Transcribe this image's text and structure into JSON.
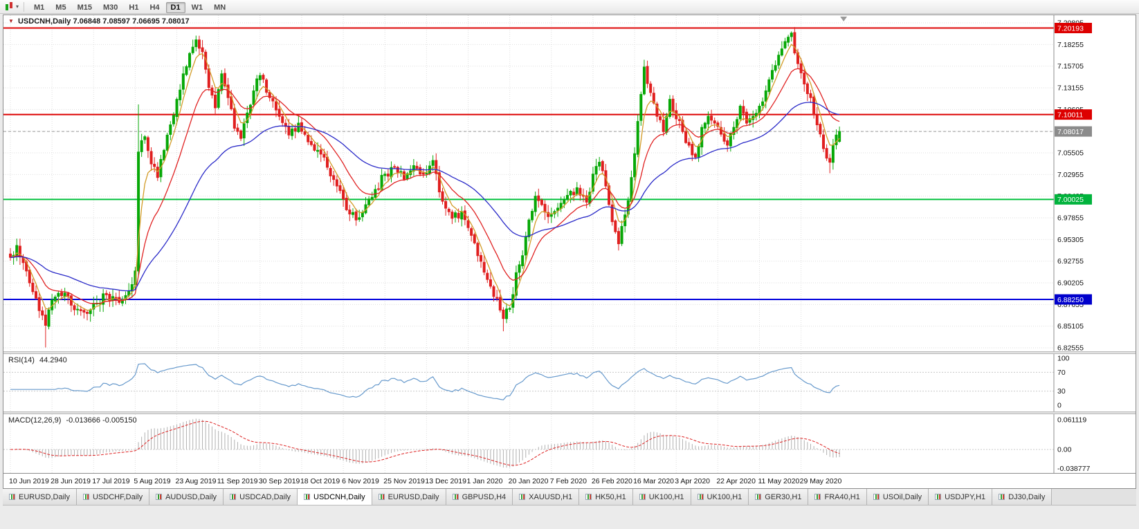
{
  "toolbar": {
    "timeframes": [
      {
        "label": "M1",
        "active": false
      },
      {
        "label": "M5",
        "active": false
      },
      {
        "label": "M15",
        "active": false
      },
      {
        "label": "M30",
        "active": false
      },
      {
        "label": "H1",
        "active": false
      },
      {
        "label": "H4",
        "active": false
      },
      {
        "label": "D1",
        "active": true
      },
      {
        "label": "W1",
        "active": false
      },
      {
        "label": "MN",
        "active": false
      }
    ]
  },
  "tabs": {
    "items": [
      {
        "label": "EURUSD,Daily",
        "active": false
      },
      {
        "label": "USDCHF,Daily",
        "active": false
      },
      {
        "label": "AUDUSD,Daily",
        "active": false
      },
      {
        "label": "USDCAD,Daily",
        "active": false
      },
      {
        "label": "USDCNH,Daily",
        "active": true
      },
      {
        "label": "EURUSD,Daily",
        "active": false
      },
      {
        "label": "GBPUSD,H4",
        "active": false
      },
      {
        "label": "XAUUSD,H1",
        "active": false
      },
      {
        "label": "HK50,H1",
        "active": false
      },
      {
        "label": "UK100,H1",
        "active": false
      },
      {
        "label": "UK100,H1",
        "active": false
      },
      {
        "label": "GER30,H1",
        "active": false
      },
      {
        "label": "FRA40,H1",
        "active": false
      },
      {
        "label": "USOil,Daily",
        "active": false
      },
      {
        "label": "USDJPY,H1",
        "active": false
      },
      {
        "label": "DJ30,Daily",
        "active": false
      }
    ]
  },
  "colors": {
    "up": "#07a807",
    "down": "#e01f1f",
    "grid": "#dedede",
    "rsi": "#6699cc",
    "macd_hist": "#b0b0b0",
    "macd_signal": "#dd2222"
  },
  "chart_data": {
    "type": "candlestick",
    "symbol": "USDCNH",
    "timeframe": "Daily",
    "title": "USDCNH,Daily",
    "title_ohlc_text": "7.06848 7.08597 7.06695 7.08017",
    "last_ohlc": {
      "open": 7.06848,
      "high": 7.08597,
      "low": 7.06695,
      "close": 7.08017
    },
    "current_price": 7.08017,
    "current_price_line": {
      "price": 7.08017,
      "color": "#9a9a9a"
    },
    "candle_count": 260,
    "x_tick_step": 13,
    "x_tick_labels": [
      "10 Jun 2019",
      "28 Jun 2019",
      "17 Jul 2019",
      "5 Aug 2019",
      "23 Aug 2019",
      "11 Sep 2019",
      "30 Sep 2019",
      "18 Oct 2019",
      "6 Nov 2019",
      "25 Nov 2019",
      "13 Dec 2019",
      "1 Jan 2020",
      "20 Jan 2020",
      "7 Feb 2020",
      "26 Feb 2020",
      "16 Mar 2020",
      "3 Apr 2020",
      "22 Apr 2020",
      "11 May 2020",
      "29 May 2020"
    ],
    "y_axis": {
      "top": 7.20805,
      "step": 0.0255,
      "labels": [
        "7.20805",
        "7.18255",
        "7.15705",
        "7.13155",
        "7.10605",
        "7.08055",
        "7.05505",
        "7.02955",
        "7.00405",
        "6.97855",
        "6.95305",
        "6.92755",
        "6.90205",
        "6.87655",
        "6.85105",
        "6.82555"
      ]
    },
    "key_levels": [
      {
        "price": 7.20193,
        "color": "#dd0000"
      },
      {
        "price": 7.10011,
        "color": "#dd0000"
      },
      {
        "price": 7.00025,
        "color": "#00c03c"
      },
      {
        "price": 6.8825,
        "color": "#0000dd"
      }
    ],
    "price_badges": [
      {
        "label": "7.20193",
        "price": 7.20193,
        "color": "#dd0000",
        "text_color": "#ffffff"
      },
      {
        "label": "7.10011",
        "price": 7.10011,
        "color": "#dd0000",
        "text_color": "#ffffff"
      },
      {
        "label": "7.08017",
        "price": 7.08017,
        "color": "#8b8b8b",
        "text_color": "#ffffff"
      },
      {
        "label": "7.00025",
        "price": 7.00025,
        "color": "#00b33c",
        "text_color": "#ffffff"
      },
      {
        "label": "6.88250",
        "price": 6.8825,
        "color": "#0000cc",
        "text_color": "#ffffff"
      }
    ],
    "moving_averages": [
      {
        "name": "fast-ma",
        "period": 5,
        "color": "#d29b26"
      },
      {
        "name": "medium-ma",
        "period": 15,
        "color": "#e02222"
      },
      {
        "name": "slow-ma",
        "period": 45,
        "color": "#2929c8"
      }
    ],
    "indicators": {
      "rsi": {
        "label": "RSI(14)",
        "period": 14,
        "current": "44.2940",
        "levels": [
          100,
          70,
          30,
          0
        ],
        "dashed_levels": [
          70,
          30
        ]
      },
      "macd": {
        "label": "MACD(12,26,9)",
        "fast": 12,
        "slow": 26,
        "signal": 9,
        "current_macd": -0.013666,
        "current_signal": -0.00515,
        "current_text": "-0.013666 -0.005150",
        "axis": [
          {
            "label": "0.061119",
            "value": 0.061119
          },
          {
            "label": "0.00",
            "value": 0
          },
          {
            "label": "-0.038777",
            "value": -0.038777
          }
        ]
      }
    },
    "price_path_anchors": [
      [
        0,
        6.932
      ],
      [
        2,
        6.946
      ],
      [
        5,
        6.916
      ],
      [
        8,
        6.884
      ],
      [
        11,
        6.852
      ],
      [
        13,
        6.882
      ],
      [
        17,
        6.89
      ],
      [
        21,
        6.871
      ],
      [
        24,
        6.866
      ],
      [
        27,
        6.878
      ],
      [
        30,
        6.888
      ],
      [
        34,
        6.879
      ],
      [
        38,
        6.9
      ],
      [
        39,
        6.916
      ],
      [
        40,
        7.056
      ],
      [
        42,
        7.074
      ],
      [
        44,
        7.042
      ],
      [
        46,
        7.026
      ],
      [
        48,
        7.058
      ],
      [
        50,
        7.088
      ],
      [
        52,
        7.118
      ],
      [
        54,
        7.148
      ],
      [
        56,
        7.172
      ],
      [
        58,
        7.188
      ],
      [
        60,
        7.174
      ],
      [
        62,
        7.132
      ],
      [
        64,
        7.108
      ],
      [
        66,
        7.148
      ],
      [
        68,
        7.12
      ],
      [
        70,
        7.084
      ],
      [
        72,
        7.072
      ],
      [
        74,
        7.102
      ],
      [
        76,
        7.128
      ],
      [
        78,
        7.146
      ],
      [
        81,
        7.12
      ],
      [
        84,
        7.098
      ],
      [
        87,
        7.076
      ],
      [
        90,
        7.09
      ],
      [
        93,
        7.068
      ],
      [
        96,
        7.058
      ],
      [
        99,
        7.038
      ],
      [
        102,
        7.016
      ],
      [
        105,
        6.988
      ],
      [
        108,
        6.976
      ],
      [
        111,
        6.994
      ],
      [
        114,
        7.012
      ],
      [
        117,
        7.03
      ],
      [
        120,
        7.038
      ],
      [
        123,
        7.024
      ],
      [
        126,
        7.04
      ],
      [
        129,
        7.03
      ],
      [
        132,
        7.046
      ],
      [
        135,
        6.998
      ],
      [
        138,
        6.978
      ],
      [
        141,
        6.986
      ],
      [
        143,
        6.967
      ],
      [
        146,
        6.934
      ],
      [
        149,
        6.906
      ],
      [
        152,
        6.884
      ],
      [
        154,
        6.86
      ],
      [
        156,
        6.872
      ],
      [
        158,
        6.914
      ],
      [
        160,
        6.934
      ],
      [
        162,
        6.976
      ],
      [
        164,
        7.004
      ],
      [
        166,
        6.994
      ],
      [
        168,
        6.98
      ],
      [
        171,
        6.99
      ],
      [
        174,
        7.005
      ],
      [
        177,
        7.014
      ],
      [
        180,
        6.997
      ],
      [
        182,
        7.03
      ],
      [
        184,
        7.044
      ],
      [
        186,
        7.016
      ],
      [
        188,
        6.974
      ],
      [
        190,
        6.948
      ],
      [
        192,
        6.982
      ],
      [
        194,
        7.026
      ],
      [
        196,
        7.092
      ],
      [
        198,
        7.156
      ],
      [
        200,
        7.126
      ],
      [
        202,
        7.098
      ],
      [
        204,
        7.08
      ],
      [
        206,
        7.118
      ],
      [
        208,
        7.095
      ],
      [
        210,
        7.08
      ],
      [
        212,
        7.064
      ],
      [
        214,
        7.05
      ],
      [
        216,
        7.085
      ],
      [
        218,
        7.098
      ],
      [
        220,
        7.09
      ],
      [
        222,
        7.077
      ],
      [
        224,
        7.064
      ],
      [
        226,
        7.085
      ],
      [
        228,
        7.11
      ],
      [
        230,
        7.09
      ],
      [
        232,
        7.098
      ],
      [
        234,
        7.11
      ],
      [
        236,
        7.128
      ],
      [
        238,
        7.152
      ],
      [
        240,
        7.17
      ],
      [
        242,
        7.186
      ],
      [
        244,
        7.196
      ],
      [
        246,
        7.16
      ],
      [
        248,
        7.136
      ],
      [
        250,
        7.12
      ],
      [
        252,
        7.088
      ],
      [
        254,
        7.06
      ],
      [
        256,
        7.044
      ],
      [
        258,
        7.076
      ],
      [
        259,
        7.08017
      ]
    ],
    "overrides": {
      "11": {
        "low": 6.826
      },
      "40": {
        "open": 6.916,
        "high": 7.112,
        "low": 6.91,
        "close": 7.056
      },
      "58": {
        "high": 7.193
      },
      "154": {
        "low": 6.845
      },
      "244": {
        "high": 7.198
      },
      "256": {
        "low": 7.031
      },
      "259": {
        "open": 7.06848,
        "high": 7.08597,
        "low": 7.06695,
        "close": 7.08017
      }
    }
  }
}
